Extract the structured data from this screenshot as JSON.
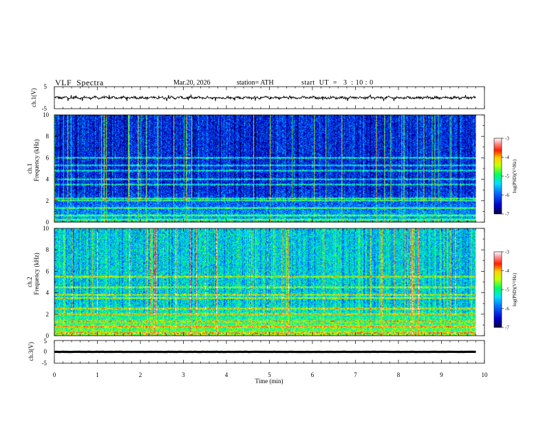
{
  "header": {
    "title": "VLF  Spectra",
    "date": "Mar.20, 2026",
    "station": "station= ATH",
    "start_ut": "start  UT  =   3  : 10 : 0"
  },
  "chart_data": [
    {
      "type": "line",
      "panel": "ch1-waveform",
      "ylabel": "ch.1(V)",
      "ylim": [
        -5,
        5
      ],
      "yticks": [
        "5",
        "-5"
      ],
      "xlim": [
        0,
        10
      ],
      "data_end_min": 9.8,
      "baseline": 0,
      "amplitude_range": [
        -1.5,
        1.2
      ],
      "color": "#000000"
    },
    {
      "type": "heatmap",
      "panel": "ch1-spectrogram",
      "ylabel_lines": [
        "ch.1",
        "Frequency  (kHz)"
      ],
      "ylim": [
        0,
        10
      ],
      "yticks": [
        "0",
        "2",
        "4",
        "6",
        "8",
        "10"
      ],
      "xlim": [
        0,
        10
      ],
      "data_end_min": 9.8,
      "colorbar_label": "log(PSD)(V²/Hz)",
      "colorbar_ticks": [
        "-3",
        "-4",
        "-5",
        "-6",
        "-7"
      ],
      "colorbar_range": [
        -7,
        -3
      ],
      "background_level": -6.3,
      "bands_khz": [
        0.2,
        0.6,
        1.3,
        2.0,
        2.2,
        3.5,
        4.0,
        4.8,
        5.3,
        6.0
      ]
    },
    {
      "type": "heatmap",
      "panel": "ch2-spectrogram",
      "ylabel_lines": [
        "ch.2",
        "Frequency  (kHz)"
      ],
      "ylim": [
        0,
        10
      ],
      "yticks": [
        "0",
        "2",
        "4",
        "6",
        "8",
        "10"
      ],
      "xlim": [
        0,
        10
      ],
      "data_end_min": 9.8,
      "colorbar_label": "log(PSD)(V²/Hz)",
      "colorbar_ticks": [
        "-3",
        "-4",
        "-5",
        "-6",
        "-7"
      ],
      "colorbar_range": [
        -7,
        -3
      ],
      "background_level": -5.4,
      "bands_khz": [
        0.2,
        0.8,
        1.3,
        2.0,
        2.5,
        3.5,
        3.8,
        4.5,
        5.5
      ]
    },
    {
      "type": "line",
      "panel": "ch3-waveform",
      "ylabel": "ch.3(V)",
      "ylim": [
        -5,
        5
      ],
      "yticks": [
        "5",
        "0",
        "-5"
      ],
      "xlim": [
        0,
        10
      ],
      "data_end_min": 9.8,
      "baseline": 0,
      "amplitude_range": [
        -0.3,
        0.3
      ],
      "color": "#000000",
      "xlabel": "Time  (min)",
      "xticks": [
        "0",
        "1",
        "2",
        "3",
        "4",
        "5",
        "6",
        "7",
        "8",
        "9",
        "10"
      ]
    }
  ]
}
